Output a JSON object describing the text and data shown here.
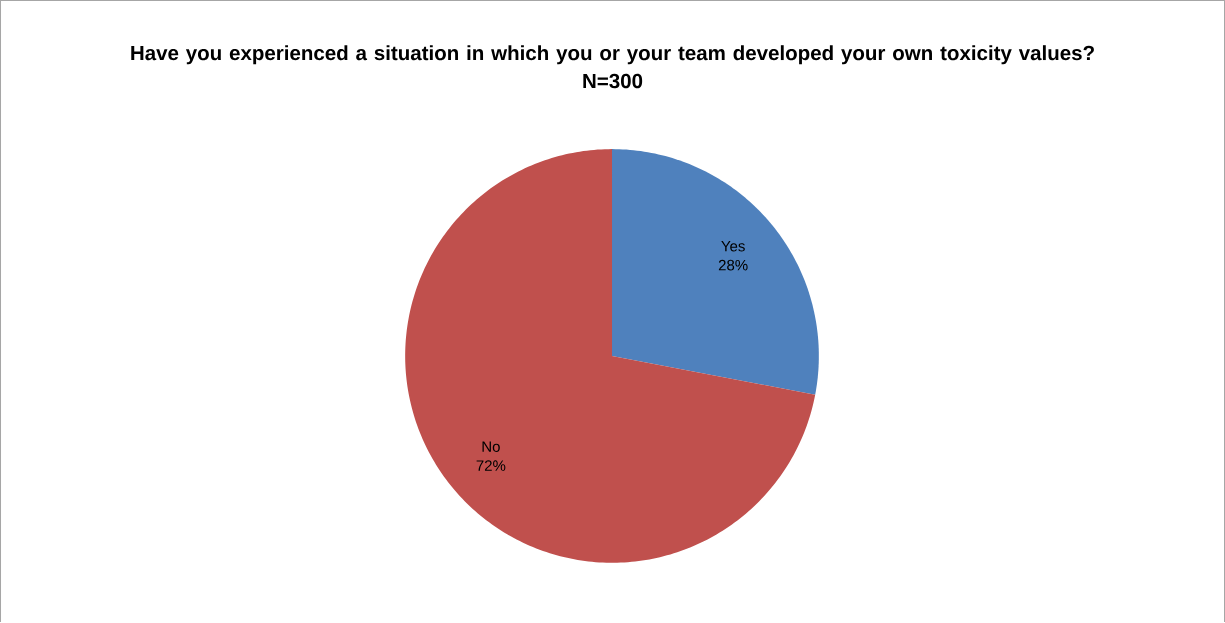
{
  "chart_data": {
    "type": "pie",
    "title": "Have you experienced a situation in which you or your team developed your own toxicity values?",
    "subtitle": "N=300",
    "categories": [
      "Yes",
      "No"
    ],
    "values": [
      28,
      72
    ],
    "colors": [
      "#4f81bd",
      "#c0504d"
    ],
    "value_labels": [
      "28%",
      "72%"
    ]
  }
}
